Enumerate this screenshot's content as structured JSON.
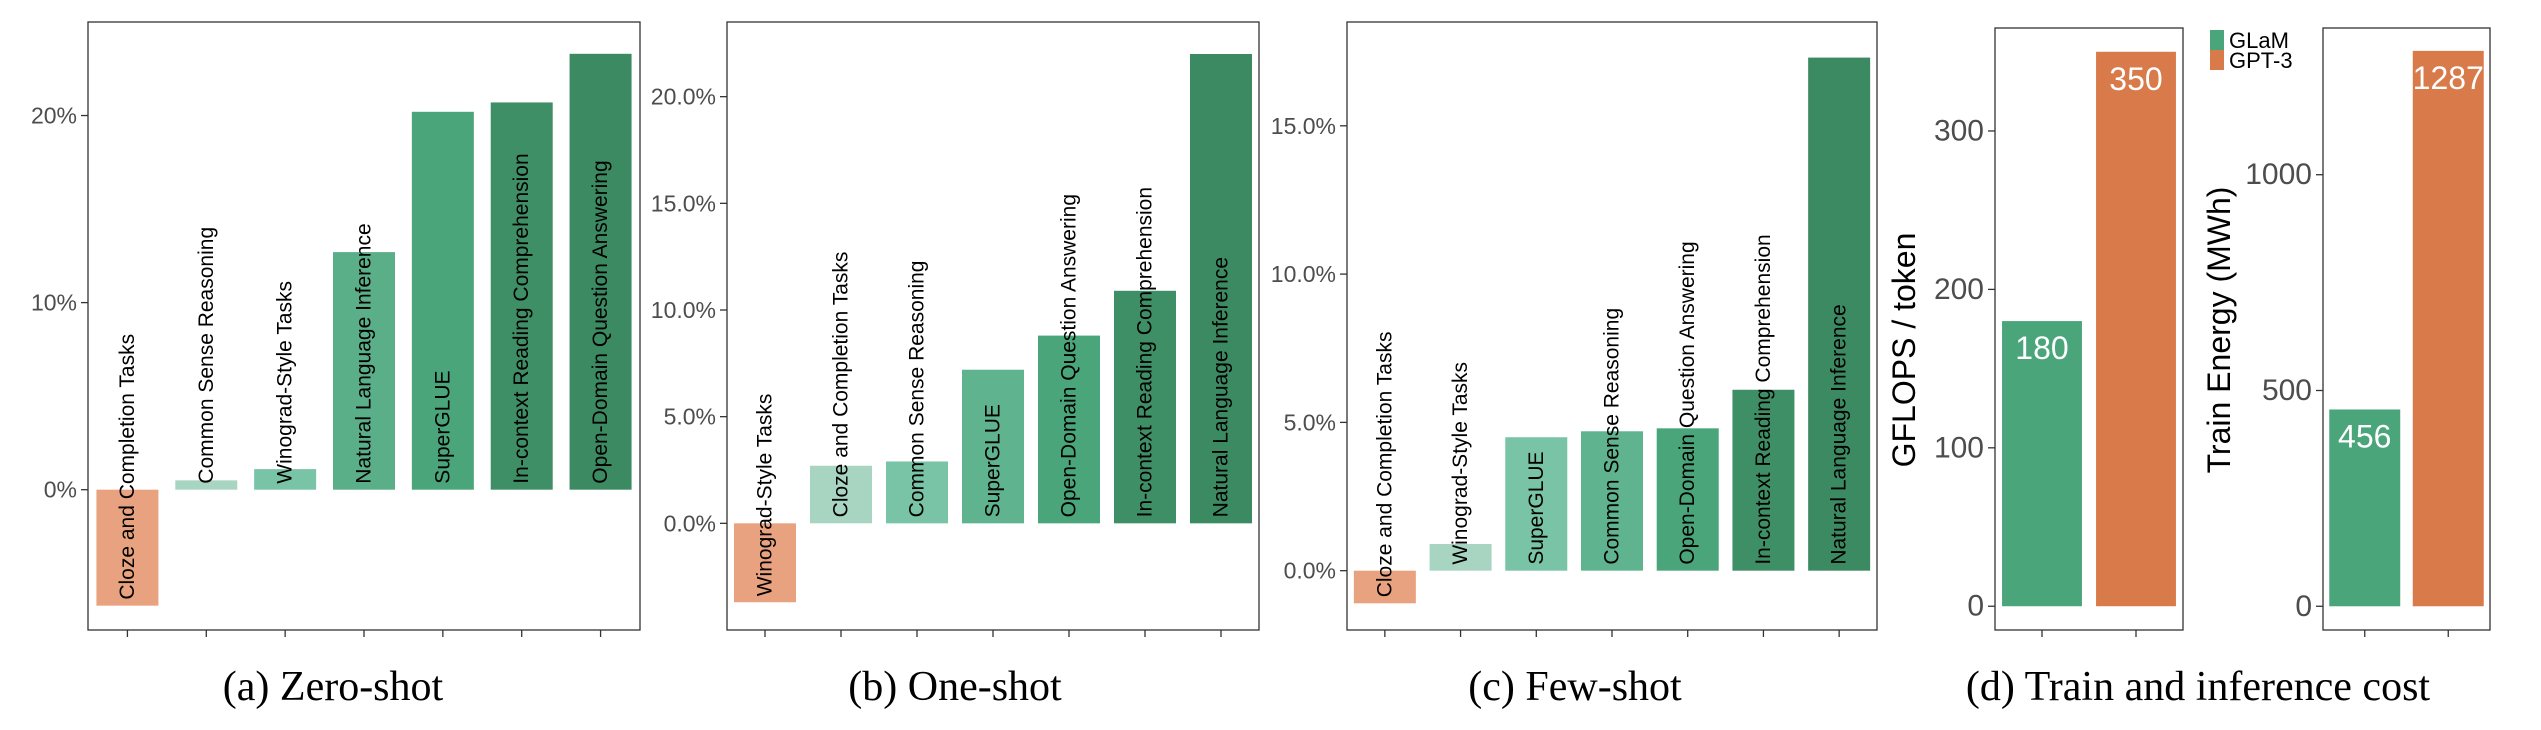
{
  "chart_data": [
    {
      "id": "zero",
      "type": "bar",
      "caption": "(a) Zero-shot",
      "categories": [
        "Cloze and Completion Tasks",
        "Common Sense Reasoning",
        "Winograd-Style Tasks",
        "Natural Language Inference",
        "SuperGLUE",
        "In-context Reading Comprehension",
        "Open-Domain Question Answering"
      ],
      "values": [
        -6.2,
        0.5,
        1.1,
        12.7,
        20.2,
        20.7,
        23.3
      ],
      "colors": [
        "#e9a27f",
        "#a8d5c2",
        "#79c4a6",
        "#5aae88",
        "#4aa57b",
        "#3f8f66",
        "#3c8a62"
      ],
      "ylim": [
        -7.5,
        25
      ],
      "yticks": [
        0,
        10,
        20
      ],
      "ytick_labels": [
        "0%",
        "10%",
        "20%"
      ]
    },
    {
      "id": "one",
      "type": "bar",
      "caption": "(b) One-shot",
      "categories": [
        "Winograd-Style Tasks",
        "Cloze and Completion Tasks",
        "Common Sense Reasoning",
        "SuperGLUE",
        "Open-Domain Question Answering",
        "In-context Reading Comprehension",
        "Natural Language Inference"
      ],
      "values": [
        -3.7,
        2.7,
        2.9,
        7.2,
        8.8,
        10.9,
        22.0
      ],
      "colors": [
        "#e9a27f",
        "#a8d5c2",
        "#79c4a6",
        "#5fb48f",
        "#4aa57b",
        "#3f8f66",
        "#3c8a62"
      ],
      "ylim": [
        -5,
        23.5
      ],
      "yticks": [
        0,
        5,
        10,
        15,
        20
      ],
      "ytick_labels": [
        "0.0%",
        "5.0%",
        "10.0%",
        "15.0%",
        "20.0%"
      ]
    },
    {
      "id": "few",
      "type": "bar",
      "caption": "(c) Few-shot",
      "categories": [
        "Cloze and Completion Tasks",
        "Winograd-Style Tasks",
        "SuperGLUE",
        "Common Sense Reasoning",
        "Open-Domain Question Answering",
        "In-context Reading Comprehension",
        "Natural Language Inference"
      ],
      "values": [
        -1.1,
        0.9,
        4.5,
        4.7,
        4.8,
        6.1,
        17.3
      ],
      "colors": [
        "#e9a27f",
        "#a8d5c2",
        "#79c4a6",
        "#5fb48f",
        "#4aa57b",
        "#3f8f66",
        "#3c8a62"
      ],
      "ylim": [
        -2,
        18.5
      ],
      "yticks": [
        0,
        5,
        10,
        15
      ],
      "ytick_labels": [
        "0.0%",
        "5.0%",
        "10.0%",
        "15.0%"
      ]
    },
    {
      "id": "gflops",
      "type": "bar",
      "caption": "(d) Train and inference cost",
      "ylabel": "GFLOPS / token",
      "categories": [
        "GLaM",
        "GPT-3"
      ],
      "values": [
        180,
        350
      ],
      "value_labels": [
        "180",
        "350"
      ],
      "colors": [
        "#4aa57b",
        "#d97a4a"
      ],
      "ylim": [
        -15,
        365
      ],
      "yticks": [
        0,
        100,
        200,
        300
      ],
      "ytick_labels": [
        "0",
        "100",
        "200",
        "300"
      ]
    },
    {
      "id": "energy",
      "type": "bar",
      "ylabel": "Train Energy (MWh)",
      "categories": [
        "GLaM",
        "GPT-3"
      ],
      "values": [
        456,
        1287
      ],
      "value_labels": [
        "456",
        "1287"
      ],
      "colors": [
        "#4aa57b",
        "#d97a4a"
      ],
      "ylim": [
        -55,
        1340
      ],
      "yticks": [
        0,
        500,
        1000
      ],
      "ytick_labels": [
        "0",
        "500",
        "1000"
      ]
    }
  ],
  "legend": {
    "items": [
      {
        "label": "GLaM",
        "color": "#4aa57b"
      },
      {
        "label": "GPT-3",
        "color": "#d97a4a"
      }
    ]
  }
}
